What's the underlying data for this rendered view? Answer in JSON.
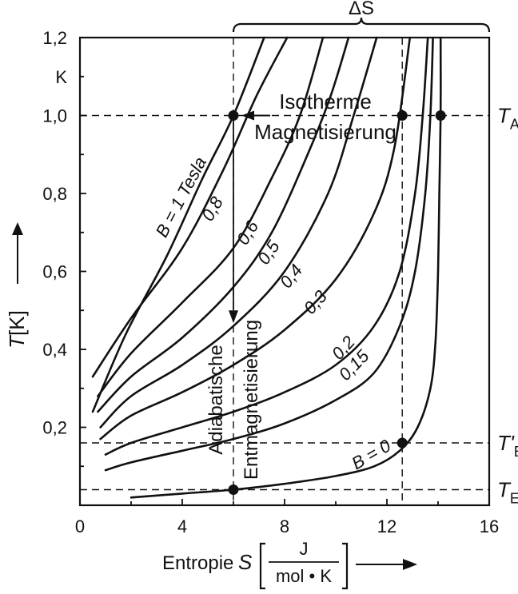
{
  "chart_data": {
    "type": "line",
    "title": "",
    "xlabel": {
      "prefix": "Entropie",
      "symbol": "S",
      "unit_num": "J",
      "unit_den": "mol • K"
    },
    "ylabel": {
      "symbol": "T",
      "unit": "[K]"
    },
    "xlim": [
      0,
      16
    ],
    "ylim": [
      0,
      1.2
    ],
    "x_ticks": [
      {
        "value": 0,
        "label": "0"
      },
      {
        "value": 4,
        "label": "4"
      },
      {
        "value": 8,
        "label": "8"
      },
      {
        "value": 12,
        "label": "12"
      },
      {
        "value": 16,
        "label": "16"
      }
    ],
    "y_ticks": [
      {
        "value": 0.2,
        "label": "0,2"
      },
      {
        "value": 0.4,
        "label": "0,4"
      },
      {
        "value": 0.6,
        "label": "0,6"
      },
      {
        "value": 0.8,
        "label": "0,8"
      },
      {
        "value": 1.0,
        "label": "1,0"
      },
      {
        "value": 1.2,
        "label": "1,2"
      }
    ],
    "y_unit_label": "K",
    "grid": false,
    "series": [
      {
        "name": "B = 0",
        "points": [
          [
            2.0,
            0.02
          ],
          [
            4,
            0.03
          ],
          [
            6,
            0.04
          ],
          [
            8,
            0.055
          ],
          [
            10,
            0.075
          ],
          [
            11.5,
            0.1
          ],
          [
            12.5,
            0.14
          ],
          [
            13.2,
            0.2
          ],
          [
            13.7,
            0.3
          ],
          [
            13.9,
            0.42
          ],
          [
            14.0,
            0.6
          ],
          [
            14.05,
            0.8
          ],
          [
            14.1,
            1.0
          ],
          [
            14.1,
            1.2
          ]
        ]
      },
      {
        "name": "0,15",
        "points": [
          [
            1.0,
            0.09
          ],
          [
            2,
            0.11
          ],
          [
            4,
            0.14
          ],
          [
            6,
            0.17
          ],
          [
            8,
            0.21
          ],
          [
            10,
            0.27
          ],
          [
            11.5,
            0.34
          ],
          [
            12.5,
            0.46
          ],
          [
            13.1,
            0.6
          ],
          [
            13.5,
            0.8
          ],
          [
            13.7,
            1.0
          ],
          [
            13.8,
            1.2
          ]
        ]
      },
      {
        "name": "0,2",
        "points": [
          [
            1.0,
            0.13
          ],
          [
            2,
            0.16
          ],
          [
            4,
            0.2
          ],
          [
            6,
            0.24
          ],
          [
            8,
            0.29
          ],
          [
            10,
            0.36
          ],
          [
            11.5,
            0.46
          ],
          [
            12.5,
            0.6
          ],
          [
            13.1,
            0.8
          ],
          [
            13.4,
            1.0
          ],
          [
            13.6,
            1.2
          ]
        ]
      },
      {
        "name": "0,3",
        "points": [
          [
            0.8,
            0.17
          ],
          [
            2,
            0.23
          ],
          [
            4,
            0.29
          ],
          [
            6,
            0.36
          ],
          [
            8,
            0.45
          ],
          [
            10,
            0.58
          ],
          [
            11.5,
            0.75
          ],
          [
            12.3,
            0.92
          ],
          [
            12.9,
            1.2
          ]
        ]
      },
      {
        "name": "0,4",
        "points": [
          [
            0.8,
            0.2
          ],
          [
            2,
            0.28
          ],
          [
            4,
            0.36
          ],
          [
            6,
            0.46
          ],
          [
            8,
            0.6
          ],
          [
            9.7,
            0.8
          ],
          [
            10.7,
            1.0
          ],
          [
            11.6,
            1.2
          ]
        ]
      },
      {
        "name": "0,5",
        "points": [
          [
            0.7,
            0.24
          ],
          [
            2,
            0.33
          ],
          [
            4,
            0.43
          ],
          [
            6,
            0.56
          ],
          [
            7.5,
            0.7
          ],
          [
            8.9,
            0.9
          ],
          [
            9.8,
            1.05
          ],
          [
            10.5,
            1.2
          ]
        ]
      },
      {
        "name": "0,6",
        "points": [
          [
            0.7,
            0.28
          ],
          [
            2,
            0.39
          ],
          [
            4,
            0.52
          ],
          [
            6,
            0.66
          ],
          [
            7.5,
            0.84
          ],
          [
            8.6,
            1.0
          ],
          [
            9.5,
            1.2
          ]
        ]
      },
      {
        "name": "0,8",
        "points": [
          [
            0.5,
            0.33
          ],
          [
            2,
            0.48
          ],
          [
            4,
            0.66
          ],
          [
            5.6,
            0.86
          ],
          [
            6.9,
            1.05
          ],
          [
            8.1,
            1.2
          ]
        ]
      },
      {
        "name": "B = 1 Tesla",
        "points": [
          [
            0.5,
            0.24
          ],
          [
            1.8,
            0.44
          ],
          [
            3.4,
            0.64
          ],
          [
            4.8,
            0.84
          ],
          [
            6.0,
            1.0
          ],
          [
            7.2,
            1.2
          ]
        ]
      }
    ],
    "markers": [
      {
        "x": 6.0,
        "y": 1.0
      },
      {
        "x": 12.6,
        "y": 1.0
      },
      {
        "x": 14.1,
        "y": 1.0
      },
      {
        "x": 12.6,
        "y": 0.16
      },
      {
        "x": 6.0,
        "y": 0.04
      }
    ],
    "guides": {
      "y_levels": [
        {
          "value": 1.0,
          "label": "T",
          "sub": "A"
        },
        {
          "value": 0.16,
          "label": "T'",
          "sub": "E"
        },
        {
          "value": 0.04,
          "label": "T",
          "sub": "E"
        }
      ],
      "x_levels": [
        6.0,
        12.6
      ]
    },
    "curve_labels": [
      "B = 1 Tesla",
      "0,8",
      "0,6",
      "0,5",
      "0,4",
      "0,3",
      "0,2",
      "0,15",
      "B = 0"
    ],
    "annotations": {
      "delta_s": "ΔS",
      "isotherm_line1": "Isotherme",
      "isotherm_line2": "Magnetisierung",
      "adiabatic_line1": "Adiabatische",
      "adiabatic_line2": "Entmagnetisierung"
    }
  }
}
